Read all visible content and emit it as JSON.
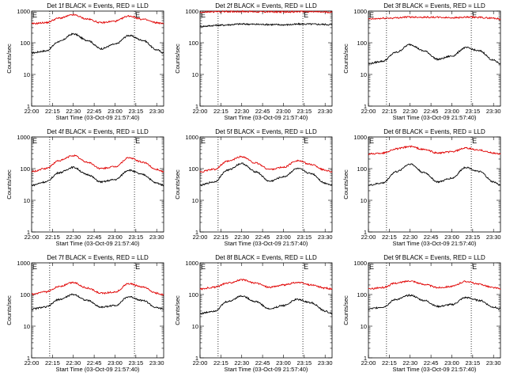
{
  "figure": {
    "panels": [
      {
        "id": "1f",
        "title": "Det 1f BLACK = Events, RED = LLD",
        "ylabel": "Counts/sec",
        "xlabel": "Start Time (03-Oct-09 21:57:40)"
      },
      {
        "id": "2f",
        "title": "Det 2f BLACK = Events, RED = LLD",
        "ylabel": "Counts/sec",
        "xlabel": "Start Time (03-Oct-09 21:57:40)"
      },
      {
        "id": "3f",
        "title": "Det 3f BLACK = Events, RED = LLD",
        "ylabel": "Counts/sec",
        "xlabel": "Start Time (03-Oct-09 21:57:40)"
      },
      {
        "id": "4f",
        "title": "Det 4f BLACK = Events, RED = LLD",
        "ylabel": "Counts/sec",
        "xlabel": "Start Time (03-Oct-09 21:57:40)"
      },
      {
        "id": "5f",
        "title": "Det 5f BLACK = Events, RED = LLD",
        "ylabel": "Counts/sec",
        "xlabel": "Start Time (03-Oct-09 21:57:40)"
      },
      {
        "id": "6f",
        "title": "Det 6f BLACK = Events, RED = LLD",
        "ylabel": "Counts/sec",
        "xlabel": "Start Time (03-Oct-09 21:57:40)"
      },
      {
        "id": "7f",
        "title": "Det 7f BLACK = Events, RED = LLD",
        "ylabel": "Counts/sec",
        "xlabel": "Start Time (03-Oct-09 21:57:40)"
      },
      {
        "id": "8f",
        "title": "Det 8f BLACK = Events, RED = LLD",
        "ylabel": "Counts/sec",
        "xlabel": "Start Time (03-Oct-09 21:57:40)"
      },
      {
        "id": "9f",
        "title": "Det 9f BLACK = Events, RED = LLD",
        "ylabel": "Counts/sec",
        "xlabel": "Start Time (03-Oct-09 21:57:40)"
      }
    ]
  },
  "chart_data": {
    "type": "line",
    "yscale": "log",
    "ylim": [
      1,
      1000
    ],
    "y_ticks": [
      "1",
      "10",
      "100",
      "1000"
    ],
    "x_range": [
      "22:00",
      "23:35"
    ],
    "x_ticks": [
      "22:00",
      "22:15",
      "22:30",
      "22:45",
      "23:00",
      "23:15",
      "23:30"
    ],
    "dotted_verticals": [
      "22:13",
      "23:14"
    ],
    "marker_label": "E",
    "marker_times": [
      "22:00",
      "23:14"
    ],
    "colors": {
      "events": "#000000",
      "lld": "#e00000"
    },
    "panels": [
      {
        "id": "1f",
        "events": {
          "x": [
            "22:00",
            "22:10",
            "22:20",
            "22:30",
            "22:40",
            "22:50",
            "23:00",
            "23:10",
            "23:20",
            "23:30",
            "23:35"
          ],
          "y": [
            48,
            55,
            110,
            190,
            120,
            65,
            90,
            170,
            120,
            60,
            48
          ]
        },
        "lld": {
          "x": [
            "22:00",
            "22:10",
            "22:20",
            "22:30",
            "22:40",
            "22:50",
            "23:00",
            "23:10",
            "23:20",
            "23:30",
            "23:35"
          ],
          "y": [
            400,
            430,
            600,
            760,
            560,
            430,
            480,
            700,
            550,
            430,
            400
          ]
        }
      },
      {
        "id": "2f",
        "events": {
          "x": [
            "22:00",
            "22:15",
            "22:30",
            "22:45",
            "23:00",
            "23:15",
            "23:30",
            "23:35"
          ],
          "y": [
            330,
            360,
            390,
            380,
            370,
            390,
            380,
            370
          ]
        },
        "lld": {
          "x": [
            "22:00",
            "22:15",
            "22:30",
            "22:45",
            "23:00",
            "23:15",
            "23:30",
            "23:35"
          ],
          "y": [
            920,
            960,
            970,
            950,
            940,
            960,
            930,
            920
          ]
        }
      },
      {
        "id": "3f",
        "events": {
          "x": [
            "22:00",
            "22:10",
            "22:20",
            "22:30",
            "22:40",
            "22:50",
            "23:00",
            "23:10",
            "23:20",
            "23:30",
            "23:35"
          ],
          "y": [
            22,
            26,
            50,
            88,
            55,
            30,
            38,
            70,
            55,
            28,
            22
          ]
        },
        "lld": {
          "x": [
            "22:00",
            "22:15",
            "22:30",
            "22:45",
            "23:00",
            "23:15",
            "23:30",
            "23:35"
          ],
          "y": [
            560,
            600,
            650,
            640,
            620,
            640,
            600,
            560
          ]
        }
      },
      {
        "id": "4f",
        "events": {
          "x": [
            "22:00",
            "22:10",
            "22:20",
            "22:30",
            "22:40",
            "22:50",
            "23:00",
            "23:10",
            "23:20",
            "23:30",
            "23:35"
          ],
          "y": [
            30,
            38,
            75,
            110,
            65,
            38,
            45,
            90,
            65,
            35,
            30
          ]
        },
        "lld": {
          "x": [
            "22:00",
            "22:10",
            "22:20",
            "22:30",
            "22:40",
            "22:50",
            "23:00",
            "23:10",
            "23:20",
            "23:30",
            "23:35"
          ],
          "y": [
            80,
            100,
            180,
            260,
            160,
            100,
            115,
            220,
            160,
            95,
            80
          ]
        }
      },
      {
        "id": "5f",
        "events": {
          "x": [
            "22:00",
            "22:10",
            "22:20",
            "22:30",
            "22:40",
            "22:50",
            "23:00",
            "23:10",
            "23:20",
            "23:30",
            "23:35"
          ],
          "y": [
            30,
            38,
            90,
            145,
            80,
            40,
            55,
            100,
            70,
            35,
            30
          ]
        },
        "lld": {
          "x": [
            "22:00",
            "22:10",
            "22:20",
            "22:30",
            "22:40",
            "22:50",
            "23:00",
            "23:10",
            "23:20",
            "23:30",
            "23:35"
          ],
          "y": [
            80,
            95,
            170,
            240,
            150,
            95,
            110,
            180,
            135,
            90,
            80
          ]
        }
      },
      {
        "id": "6f",
        "events": {
          "x": [
            "22:00",
            "22:10",
            "22:20",
            "22:30",
            "22:40",
            "22:50",
            "23:00",
            "23:10",
            "23:20",
            "23:30",
            "23:35"
          ],
          "y": [
            30,
            35,
            80,
            140,
            75,
            38,
            50,
            110,
            80,
            38,
            30
          ]
        },
        "lld": {
          "x": [
            "22:00",
            "22:10",
            "22:20",
            "22:30",
            "22:40",
            "22:50",
            "23:00",
            "23:10",
            "23:20",
            "23:30",
            "23:35"
          ],
          "y": [
            290,
            310,
            420,
            500,
            400,
            310,
            340,
            440,
            380,
            310,
            290
          ]
        }
      },
      {
        "id": "7f",
        "events": {
          "x": [
            "22:00",
            "22:10",
            "22:20",
            "22:30",
            "22:40",
            "22:50",
            "23:00",
            "23:10",
            "23:20",
            "23:30",
            "23:35"
          ],
          "y": [
            35,
            40,
            70,
            100,
            65,
            40,
            45,
            85,
            65,
            38,
            35
          ]
        },
        "lld": {
          "x": [
            "22:00",
            "22:10",
            "22:20",
            "22:30",
            "22:40",
            "22:50",
            "23:00",
            "23:10",
            "23:20",
            "23:30",
            "23:35"
          ],
          "y": [
            100,
            120,
            180,
            240,
            160,
            110,
            120,
            220,
            170,
            110,
            100
          ]
        }
      },
      {
        "id": "8f",
        "events": {
          "x": [
            "22:00",
            "22:10",
            "22:20",
            "22:30",
            "22:40",
            "22:50",
            "23:00",
            "23:10",
            "23:20",
            "23:30",
            "23:35"
          ],
          "y": [
            25,
            30,
            60,
            90,
            60,
            35,
            45,
            70,
            55,
            30,
            25
          ]
        },
        "lld": {
          "x": [
            "22:00",
            "22:10",
            "22:20",
            "22:30",
            "22:40",
            "22:50",
            "23:00",
            "23:10",
            "23:20",
            "23:30",
            "23:35"
          ],
          "y": [
            150,
            170,
            230,
            290,
            230,
            170,
            200,
            240,
            200,
            160,
            150
          ]
        }
      },
      {
        "id": "9f",
        "events": {
          "x": [
            "22:00",
            "22:10",
            "22:20",
            "22:30",
            "22:40",
            "22:50",
            "23:00",
            "23:10",
            "23:20",
            "23:30",
            "23:35"
          ],
          "y": [
            35,
            40,
            70,
            95,
            65,
            42,
            48,
            80,
            65,
            40,
            35
          ]
        },
        "lld": {
          "x": [
            "22:00",
            "22:10",
            "22:20",
            "22:30",
            "22:40",
            "22:50",
            "23:00",
            "23:10",
            "23:20",
            "23:30",
            "23:35"
          ],
          "y": [
            150,
            165,
            230,
            270,
            210,
            165,
            180,
            260,
            210,
            165,
            150
          ]
        }
      }
    ]
  }
}
